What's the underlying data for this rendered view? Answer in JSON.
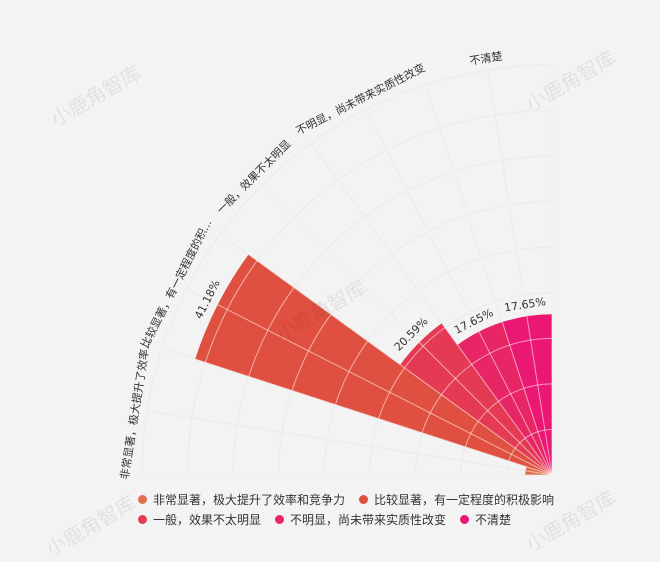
{
  "chart_data": {
    "type": "rose",
    "categories": [
      "非常显著，极大提升了效率和竞争力",
      "比较显著，有一定程度的积极影响",
      "一般，效果不太明显",
      "不明显，尚未带来实质性改变",
      "不清楚"
    ],
    "axis_labels": [
      "非常显著，极大提升了效率...",
      "比较显著，有一定程度的积...",
      "一般，效果不太明显",
      "不明显，尚未带来实质性改变",
      "不清楚"
    ],
    "values": [
      2.94,
      41.18,
      20.59,
      17.65,
      17.65
    ],
    "data_labels": [
      "",
      "41.18%",
      "20.59%",
      "17.65%",
      "17.65%"
    ],
    "colors": [
      "#e0704d",
      "#e05040",
      "#e43a54",
      "#e82565",
      "#ea1873"
    ],
    "rmax": 45,
    "grid_rings": 9,
    "legend_position": "bottom"
  },
  "legend": [
    [
      {
        "label": "非常显著，极大提升了效率和竞争力",
        "color": "#e0704d"
      },
      {
        "label": "比较显著，有一定程度的积极影响",
        "color": "#e05040"
      }
    ],
    [
      {
        "label": "一般，效果不太明显",
        "color": "#e43a54"
      },
      {
        "label": "不明显，尚未带来实质性改变",
        "color": "#e82565"
      },
      {
        "label": "不清楚",
        "color": "#ea1873"
      }
    ]
  ],
  "watermark": "小鹿角智库"
}
